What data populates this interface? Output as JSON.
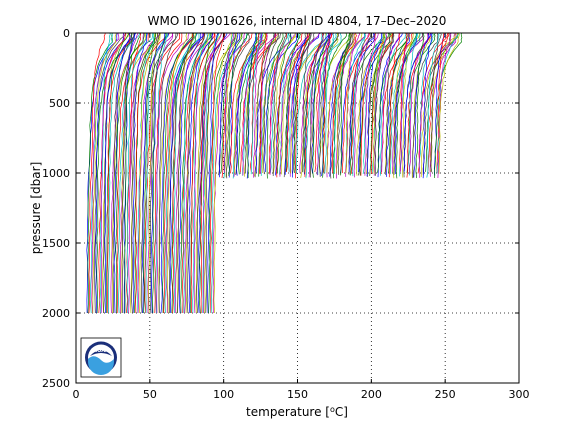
{
  "chart_data": {
    "type": "line",
    "title": "WMO ID 1901626, internal ID 4804, 17–Dec–2020",
    "xlabel_prefix": "temperature [",
    "xlabel_unit_sup": "o",
    "xlabel_suffix": "C]",
    "ylabel": "pressure [dbar]",
    "xlim": [
      0,
      300
    ],
    "ylim": [
      0,
      2500
    ],
    "y_reversed": true,
    "x_ticks": [
      "0",
      "50",
      "100",
      "150",
      "200",
      "250",
      "300"
    ],
    "y_ticks": [
      "0",
      "500",
      "1000",
      "1500",
      "2000",
      "2500"
    ],
    "grid": "dotted",
    "profile_offset_per_cycle": 0.9,
    "deep_profiles": {
      "max_pressure": 2000,
      "offset_range": [
        7,
        94
      ],
      "surface_temp_range": [
        9,
        28
      ],
      "mid_temp_range": [
        3.5,
        6
      ],
      "deep_temp": 3
    },
    "shallow_profiles": {
      "max_pressure_range": [
        990,
        1040
      ],
      "offset_range": [
        95,
        246
      ],
      "surface_temp_range": [
        9,
        28
      ],
      "mid_temp_range": [
        3.5,
        6
      ],
      "deep_temp": 3
    },
    "series_colors": [
      "#0000ff",
      "#008000",
      "#ff0000",
      "#00bfbf",
      "#bf00bf",
      "#bfbf00",
      "#404040"
    ],
    "logo": {
      "text": "NOAA",
      "colors": {
        "dark": "#1b2f7a",
        "light": "#3aa0e0",
        "white": "#ffffff"
      }
    }
  }
}
